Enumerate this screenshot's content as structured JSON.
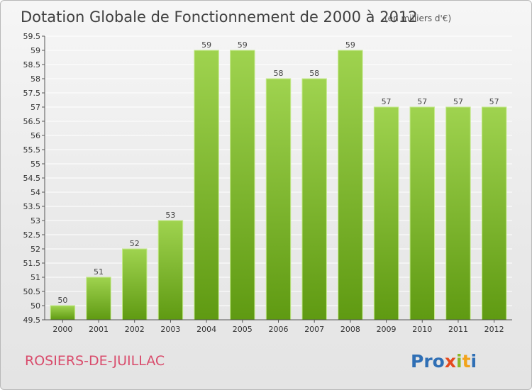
{
  "header": {
    "title": "Dotation Globale de Fonctionnement de 2000 à 2012",
    "unit_note": "(en milliers d'€)"
  },
  "footer": {
    "commune": "ROSIERS-DE-JUILLAC",
    "logo_letters": [
      "P",
      "r",
      "o",
      "x",
      "i",
      "t",
      "i"
    ],
    "logo_colors": [
      "#2f6fb5",
      "#2f6fb5",
      "#2f6fb5",
      "#e54a1f",
      "#8ab828",
      "#f2a31b",
      "#2f6fb5"
    ]
  },
  "chart_data": {
    "type": "bar",
    "title": "Dotation Globale de Fonctionnement de 2000 à 2012",
    "subtitle": "(en milliers d'€)",
    "categories": [
      "2000",
      "2001",
      "2002",
      "2003",
      "2004",
      "2005",
      "2006",
      "2007",
      "2008",
      "2009",
      "2010",
      "2011",
      "2012"
    ],
    "values": [
      50,
      51,
      52,
      53,
      59,
      59,
      58,
      58,
      59,
      57,
      57,
      57,
      57
    ],
    "data_labels": [
      "50",
      "51",
      "52",
      "53",
      "59",
      "59",
      "58",
      "58",
      "59",
      "57",
      "57",
      "57",
      "57"
    ],
    "ylim": [
      49.5,
      59.5
    ],
    "yticks": [
      49.5,
      50,
      50.5,
      51,
      51.5,
      52,
      52.5,
      53,
      53.5,
      54,
      54.5,
      55,
      55.5,
      56,
      56.5,
      57,
      57.5,
      58,
      58.5,
      59,
      59.5
    ],
    "ytick_labels": [
      "49.5",
      "50",
      "50.5",
      "51",
      "51.5",
      "52",
      "52.5",
      "53",
      "53.5",
      "54",
      "54.5",
      "55",
      "55.5",
      "56",
      "56.5",
      "57",
      "57.5",
      "58",
      "58.5",
      "59",
      "59.5"
    ],
    "xlabel": "",
    "ylabel": "",
    "grid": true,
    "legend": "none",
    "colors": {
      "bar_top": "#9fd34f",
      "bar_bottom": "#5f9a12",
      "bar_edge": "#c6ea8e",
      "grid": "#ffffff",
      "axis": "#555555"
    }
  }
}
